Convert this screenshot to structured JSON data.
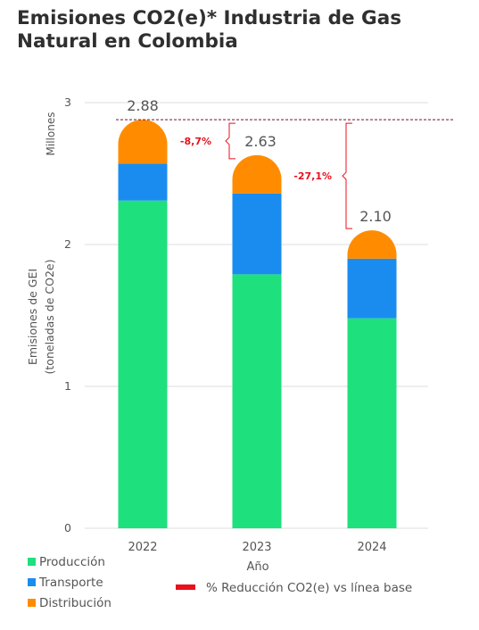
{
  "title": "Emisiones CO2(e)* Industria de Gas Natural en Colombia",
  "chart_data": {
    "type": "bar",
    "stacked": true,
    "categories": [
      "2022",
      "2023",
      "2024"
    ],
    "series": [
      {
        "name": "Producción",
        "color": "#1ee07d",
        "values": [
          2.31,
          1.79,
          1.48
        ]
      },
      {
        "name": "Transporte",
        "color": "#1a8cf0",
        "values": [
          0.26,
          0.57,
          0.42
        ]
      },
      {
        "name": "Distribución",
        "color": "#ff8c00",
        "values": [
          0.31,
          0.27,
          0.2
        ]
      }
    ],
    "totals": [
      "2.88",
      "2.63",
      "2.10"
    ],
    "xlabel": "Año",
    "ylabel_line1": "Emisiones de GEI",
    "ylabel_line2": "(toneladas de CO2e)",
    "yunit": "Millones",
    "ylim": [
      0,
      3
    ],
    "yticks": [
      0,
      1,
      2,
      3
    ],
    "grid": true,
    "baseline": 2.88,
    "reductions": [
      {
        "label": "-8,7%",
        "from": "2022",
        "to": "2023"
      },
      {
        "label": "-27,1%",
        "from": "2022",
        "to": "2024"
      }
    ],
    "reduction_color": "#e8111c",
    "reduction_legend": "% Reducción CO2(e) vs línea base",
    "legend_position": "bottom-left"
  }
}
